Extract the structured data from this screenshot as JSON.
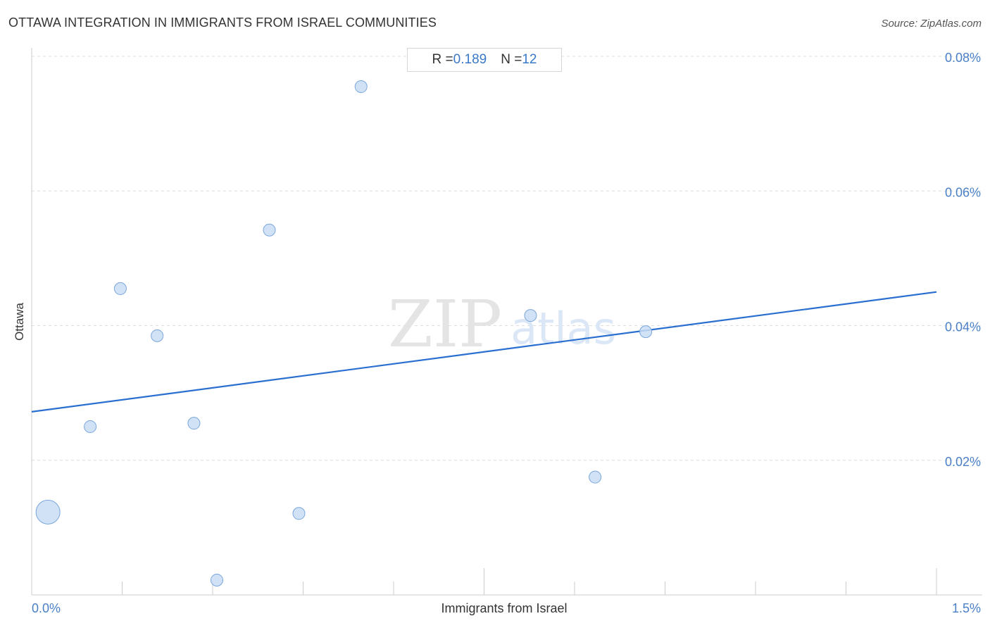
{
  "header": {
    "title": "OTTAWA INTEGRATION IN IMMIGRANTS FROM ISRAEL COMMUNITIES",
    "source": "Source: ZipAtlas.com"
  },
  "stats": {
    "r_label": "R = ",
    "r_value": "0.189",
    "n_label": "N = ",
    "n_value": "12"
  },
  "watermark": {
    "zip": "ZIP",
    "atlas": "atlas"
  },
  "colors": {
    "point_fill": "#c9ddf5",
    "point_stroke": "#7aa6dc",
    "trend_line": "#2a6fd0",
    "tick_label": "#4a80c8",
    "grid": "#dddddd"
  },
  "chart_data": {
    "type": "scatter",
    "title": "OTTAWA INTEGRATION IN IMMIGRANTS FROM ISRAEL COMMUNITIES",
    "xlabel": "Immigrants from Israel",
    "ylabel": "Ottawa",
    "xlim": [
      0.0,
      1.5
    ],
    "ylim": [
      0.0,
      0.08
    ],
    "x_tick_labels": [
      {
        "value": 0.0,
        "label": "0.0%"
      },
      {
        "value": 1.5,
        "label": "1.5%"
      }
    ],
    "y_tick_labels": [
      {
        "value": 0.02,
        "label": "0.02%"
      },
      {
        "value": 0.04,
        "label": "0.04%"
      },
      {
        "value": 0.06,
        "label": "0.06%"
      },
      {
        "value": 0.08,
        "label": "0.08%"
      }
    ],
    "grid": "horizontal dashed",
    "points": [
      {
        "x": 0.027,
        "y": 0.0123,
        "size": "large"
      },
      {
        "x": 0.097,
        "y": 0.025,
        "size": "small"
      },
      {
        "x": 0.147,
        "y": 0.0455,
        "size": "small"
      },
      {
        "x": 0.208,
        "y": 0.0385,
        "size": "small"
      },
      {
        "x": 0.269,
        "y": 0.0255,
        "size": "small"
      },
      {
        "x": 0.307,
        "y": 0.0022,
        "size": "small"
      },
      {
        "x": 0.394,
        "y": 0.0542,
        "size": "small"
      },
      {
        "x": 0.443,
        "y": 0.0121,
        "size": "small"
      },
      {
        "x": 0.546,
        "y": 0.0755,
        "size": "small"
      },
      {
        "x": 0.827,
        "y": 0.0415,
        "size": "small"
      },
      {
        "x": 0.934,
        "y": 0.0175,
        "size": "small"
      },
      {
        "x": 1.018,
        "y": 0.0391,
        "size": "small"
      }
    ],
    "trend_line": {
      "x": [
        0.0,
        1.5
      ],
      "y": [
        0.0272,
        0.045
      ]
    },
    "R": 0.189,
    "N": 12
  }
}
